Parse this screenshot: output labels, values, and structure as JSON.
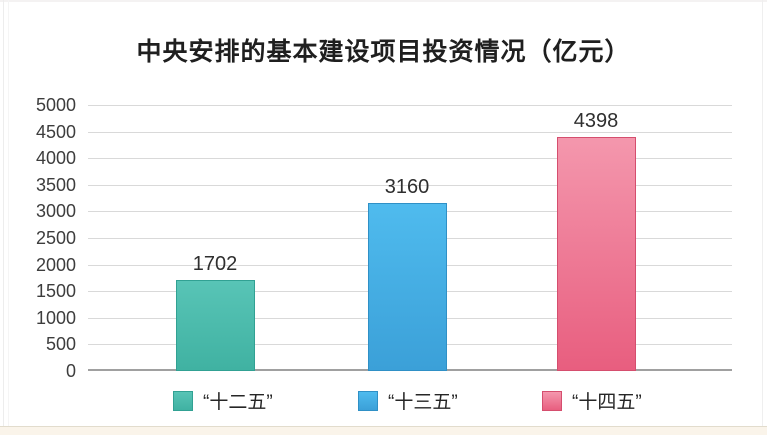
{
  "chart_data": {
    "type": "bar",
    "title": "中央安排的基本建设项目投资情况（亿元）",
    "categories": [
      "“十二五”",
      "“十三五”",
      "“十四五”"
    ],
    "values": [
      1702,
      3160,
      4398
    ],
    "value_labels": [
      "1702",
      "3160",
      "4398"
    ],
    "xlabel": "",
    "ylabel": "",
    "ylim": [
      0,
      5000
    ],
    "ytick_step": 500,
    "yticks": [
      0,
      500,
      1000,
      1500,
      2000,
      2500,
      3000,
      3500,
      4000,
      4500,
      5000
    ],
    "grid": true,
    "legend_position": "bottom",
    "series_colors": [
      {
        "name": "“十二五”",
        "top": "#58c4b6",
        "bottom": "#40b2a2",
        "border": "#31a193"
      },
      {
        "name": "“十三五”",
        "top": "#4fbbee",
        "bottom": "#3ba0d8",
        "border": "#2f90c6"
      },
      {
        "name": "“十四五”",
        "top": "#f497ad",
        "bottom": "#e85e7f",
        "border": "#d54e6e"
      }
    ],
    "value_label_color": "#2f2f2f",
    "axis_tick_color": "#3d3d3d",
    "gridline_color": "#d9d9d9",
    "baseline_color": "#a0a0a0"
  },
  "page": {
    "background": "#ffffff",
    "bottom_strip_color": "#faf4ea"
  }
}
